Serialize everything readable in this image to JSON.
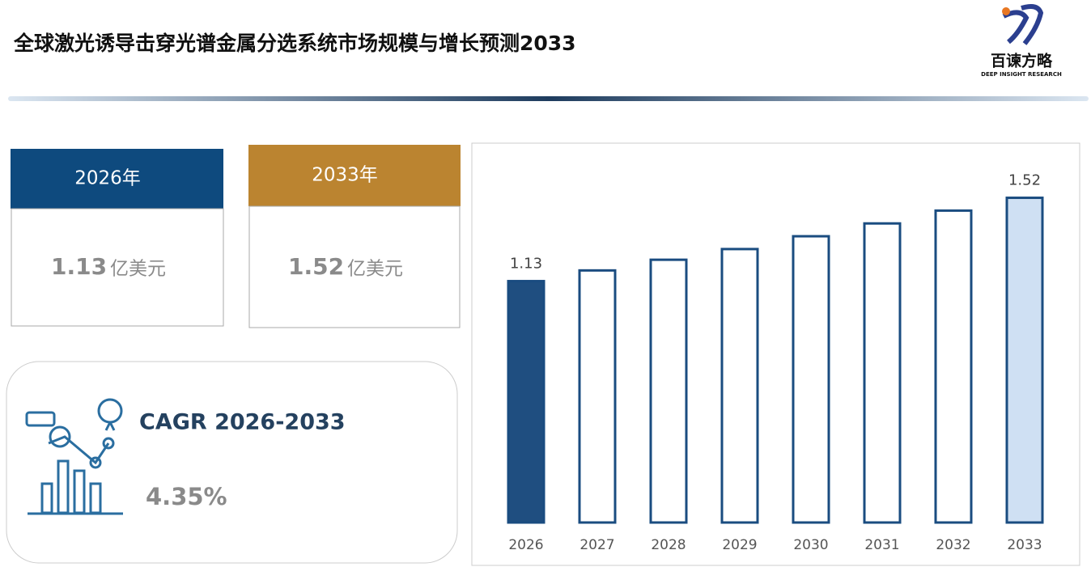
{
  "header": {
    "title": "全球激光诱导击穿光谱金属分选系统市场规模与增长预测2033",
    "logo_name": "百谏方略",
    "logo_tagline": "DEEP INSIGHT RESEARCH"
  },
  "cards": [
    {
      "year": "2026年",
      "value": "1.13",
      "unit": "亿美元"
    },
    {
      "year": "2033年",
      "value": "1.52",
      "unit": "亿美元"
    }
  ],
  "cagr": {
    "label": "CAGR 2026-2033",
    "value": "4.35%"
  },
  "chart_data": {
    "type": "bar",
    "categories": [
      "2026",
      "2027",
      "2028",
      "2029",
      "2030",
      "2031",
      "2032",
      "2033"
    ],
    "values": [
      1.13,
      1.18,
      1.23,
      1.28,
      1.34,
      1.4,
      1.46,
      1.52
    ],
    "value_labels": [
      "1.13",
      null,
      null,
      null,
      null,
      null,
      null,
      "1.52"
    ],
    "colors": [
      "#1f4e80",
      "#ffffff",
      "#ffffff",
      "#ffffff",
      "#ffffff",
      "#ffffff",
      "#ffffff",
      "#cfe0f3"
    ],
    "stroke": "#1a4c80",
    "ylim": [
      0,
      1.7
    ]
  }
}
